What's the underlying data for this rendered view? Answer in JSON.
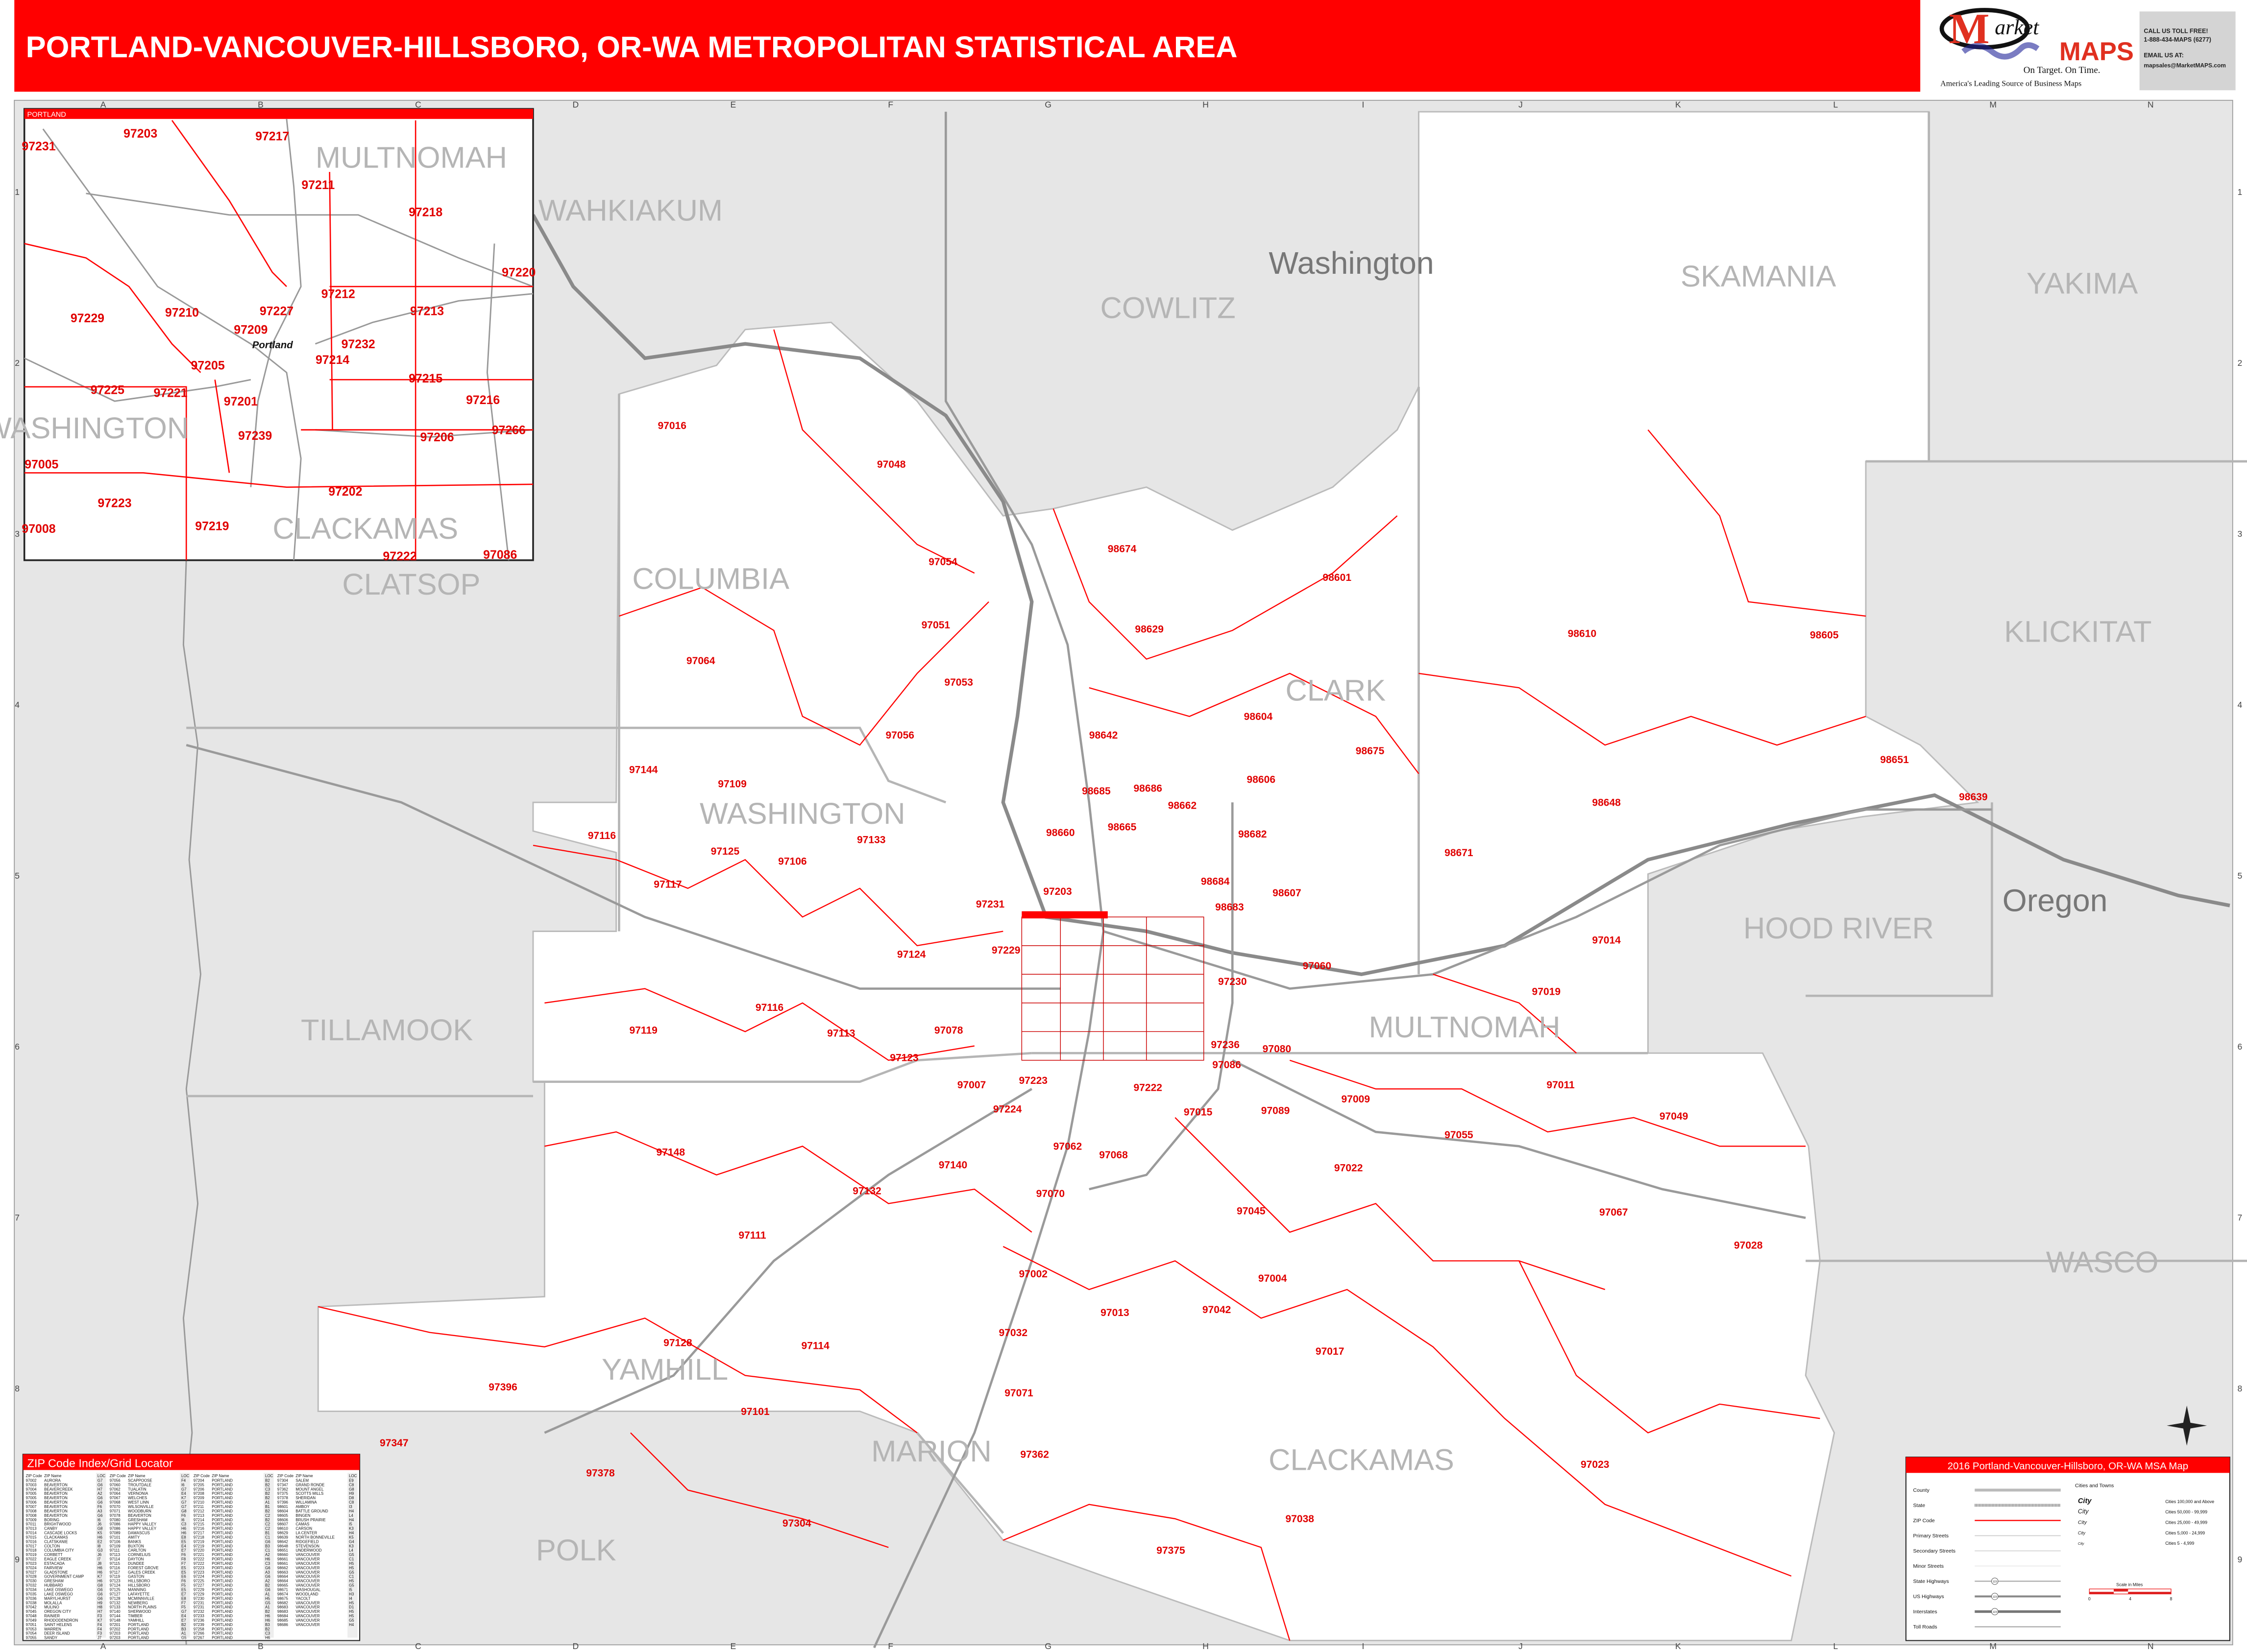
{
  "header": {
    "title": "PORTLAND-VANCOUVER-HILLSBORO, OR-WA METROPOLITAN STATISTICAL AREA",
    "accent_color": "#ff0000"
  },
  "logo": {
    "brand_text": "Market MAPS",
    "tagline": "On Target.  On Time.",
    "slogan": "America's Leading Source of Business Maps",
    "call_label": "CALL US TOLL FREE!",
    "phone": "1-888-434-MAPS (6277)",
    "email_label": "EMAIL US AT:",
    "email": "mapsales@MarketMAPS.com"
  },
  "grid": {
    "columns": [
      "A",
      "B",
      "C",
      "D",
      "E",
      "F",
      "G",
      "H",
      "I",
      "J",
      "K",
      "L",
      "M",
      "N"
    ],
    "rows": [
      "1",
      "2",
      "3",
      "4",
      "5",
      "6",
      "7",
      "8",
      "9"
    ]
  },
  "map": {
    "states": [
      "Washington",
      "Oregon"
    ],
    "counties": [
      "WAHKIAKUM",
      "COWLITZ",
      "SKAMANIA",
      "YAKIMA",
      "CLATSOP",
      "COLUMBIA",
      "CLARK",
      "KLICKITAT",
      "WASHINGTON",
      "TILLAMOOK",
      "MULTNOMAH",
      "HOOD RIVER",
      "WASCO",
      "YAMHILL",
      "MARION",
      "CLACKAMAS",
      "POLK"
    ],
    "zip_labels": [
      "97016",
      "97048",
      "97054",
      "98674",
      "98601",
      "97051",
      "98629",
      "98610",
      "98605",
      "97064",
      "97053",
      "98604",
      "98642",
      "98675",
      "97056",
      "97144",
      "97109",
      "98606",
      "98651",
      "98648",
      "98685",
      "98686",
      "98662",
      "98660",
      "98665",
      "98682",
      "97116",
      "97133",
      "97125",
      "97106",
      "98671",
      "97117",
      "97203",
      "98607",
      "97231",
      "98684",
      "98683",
      "97014",
      "97124",
      "97229",
      "97060",
      "97019",
      "97119",
      "97116",
      "97113",
      "97078",
      "97123",
      "97080",
      "97230",
      "97011",
      "97049",
      "97007",
      "97223",
      "97222",
      "97224",
      "97015",
      "97089",
      "97009",
      "97055",
      "97148",
      "97062",
      "97068",
      "97140",
      "97022",
      "97132",
      "97070",
      "97045",
      "97067",
      "97111",
      "97028",
      "97002",
      "97004",
      "97013",
      "97042",
      "97032",
      "97128",
      "97114",
      "97017",
      "97396",
      "97071",
      "97101",
      "97347",
      "97023",
      "97362",
      "97378",
      "97038",
      "97304",
      "97375",
      "98639",
      "97236",
      "97086"
    ]
  },
  "inset": {
    "title": "PORTLAND",
    "counties": [
      "MULTNOMAH",
      "WASHINGTON",
      "CLACKAMAS"
    ],
    "zip_labels": [
      "97231",
      "97203",
      "97217",
      "97211",
      "97218",
      "97220",
      "97212",
      "97210",
      "97229",
      "97227",
      "97213",
      "97209",
      "97232",
      "97214",
      "97205",
      "97215",
      "97225",
      "97221",
      "97201",
      "97216",
      "97266",
      "97206",
      "97239",
      "97005",
      "97223",
      "97202",
      "97219",
      "97008",
      "97222",
      "97086"
    ],
    "city_label": "Portland"
  },
  "zip_index": {
    "title": "ZIP Code Index/Grid Locator",
    "headers": [
      "ZIP Code",
      "ZIP Name",
      "LOC"
    ],
    "columns": [
      [
        [
          "97002",
          "AURORA",
          "G7"
        ],
        [
          "97003",
          "BEAVERTON",
          "G6"
        ],
        [
          "97004",
          "BEAVERCREEK",
          "H7"
        ],
        [
          "97005",
          "BEAVERTON",
          "A2"
        ],
        [
          "97005",
          "BEAVERTON",
          "G6"
        ],
        [
          "97006",
          "BEAVERTON",
          "G6"
        ],
        [
          "97007",
          "BEAVERTON",
          "F6"
        ],
        [
          "97008",
          "BEAVERTON",
          "A3"
        ],
        [
          "97008",
          "BEAVERTON",
          "G6"
        ],
        [
          "97009",
          "BORING",
          "I6"
        ],
        [
          "97011",
          "BRIGHTWOOD",
          "J6"
        ],
        [
          "97013",
          "CANBY",
          "G8"
        ],
        [
          "97014",
          "CASCADE LOCKS",
          "K5"
        ],
        [
          "97015",
          "CLACKAMAS",
          "H6"
        ],
        [
          "97016",
          "CLATSKANIE",
          "E2"
        ],
        [
          "97017",
          "COLTON",
          "I8"
        ],
        [
          "97018",
          "COLUMBIA CITY",
          "G3"
        ],
        [
          "97019",
          "CORBETT",
          "J6"
        ],
        [
          "97022",
          "EAGLE CREEK",
          "I7"
        ],
        [
          "97023",
          "ESTACADA",
          "J8"
        ],
        [
          "97024",
          "FAIRVIEW",
          "H6"
        ],
        [
          "97027",
          "GLADSTONE",
          "H6"
        ],
        [
          "97028",
          "GOVERNMENT CAMP",
          "K7"
        ],
        [
          "97030",
          "GRESHAM",
          "H6"
        ],
        [
          "97032",
          "HUBBARD",
          "G8"
        ],
        [
          "97034",
          "LAKE OSWEGO",
          "G6"
        ],
        [
          "97035",
          "LAKE OSWEGO",
          "G6"
        ],
        [
          "97036",
          "MARYLHURST",
          "G6"
        ],
        [
          "97038",
          "MOLALLA",
          "H9"
        ],
        [
          "97042",
          "MULINO",
          "H8"
        ],
        [
          "97045",
          "OREGON CITY",
          "H7"
        ],
        [
          "97048",
          "RAINIER",
          "F3"
        ],
        [
          "97049",
          "RHODODENDRON",
          "K7"
        ],
        [
          "97051",
          "SAINT HELENS",
          "F4"
        ],
        [
          "97053",
          "WARREN",
          "F4"
        ],
        [
          "97054",
          "DEER ISLAND",
          "F3"
        ],
        [
          "97055",
          "SANDY",
          "J7"
        ]
      ],
      [
        [
          "97056",
          "SCAPPOOSE",
          "F4"
        ],
        [
          "97060",
          "TROUTDALE",
          "I6"
        ],
        [
          "97062",
          "TUALATIN",
          "G7"
        ],
        [
          "97064",
          "VERNONIA",
          "E4"
        ],
        [
          "97067",
          "WELCHES",
          "K7"
        ],
        [
          "97068",
          "WEST LINN",
          "G7"
        ],
        [
          "97070",
          "WILSONVILLE",
          "G7"
        ],
        [
          "97071",
          "WOODBURN",
          "G8"
        ],
        [
          "97078",
          "BEAVERTON",
          "F6"
        ],
        [
          "97080",
          "GRESHAM",
          "I6"
        ],
        [
          "97086",
          "HAPPY VALLEY",
          "C3"
        ],
        [
          "97086",
          "HAPPY VALLEY",
          "H6"
        ],
        [
          "97089",
          "DAMASCUS",
          "H6"
        ],
        [
          "97101",
          "AMITY",
          "E8"
        ],
        [
          "97106",
          "BANKS",
          "E5"
        ],
        [
          "97109",
          "BUXTON",
          "E4"
        ],
        [
          "97111",
          "CARLTON",
          "E7"
        ],
        [
          "97113",
          "CORNELIUS",
          "F6"
        ],
        [
          "97114",
          "DAYTON",
          "F8"
        ],
        [
          "97115",
          "DUNDEE",
          "F7"
        ],
        [
          "97116",
          "FOREST GROVE",
          "E5"
        ],
        [
          "97117",
          "GALES CREEK",
          "E5"
        ],
        [
          "97119",
          "GASTON",
          "E6"
        ],
        [
          "97123",
          "HILLSBORO",
          "F6"
        ],
        [
          "97124",
          "HILLSBORO",
          "F5"
        ],
        [
          "97125",
          "MANNING",
          "E5"
        ],
        [
          "97127",
          "LAFAYETTE",
          "E7"
        ],
        [
          "97128",
          "MCMINNVILLE",
          "E8"
        ],
        [
          "97132",
          "NEWBERG",
          "F7"
        ],
        [
          "97133",
          "NORTH PLAINS",
          "F5"
        ],
        [
          "97140",
          "SHERWOOD",
          "G7"
        ],
        [
          "97144",
          "TIMBER",
          "E4"
        ],
        [
          "97148",
          "YAMHILL",
          "E7"
        ],
        [
          "97201",
          "PORTLAND",
          "B2"
        ],
        [
          "97202",
          "PORTLAND",
          "B3"
        ],
        [
          "97203",
          "PORTLAND",
          "A1"
        ],
        [
          "97203",
          "PORTLAND",
          "G5"
        ]
      ],
      [
        [
          "97204",
          "PORTLAND",
          "B2"
        ],
        [
          "97205",
          "PORTLAND",
          "B2"
        ],
        [
          "97206",
          "PORTLAND",
          "C3"
        ],
        [
          "97208",
          "PORTLAND",
          "B2"
        ],
        [
          "97209",
          "PORTLAND",
          "B2"
        ],
        [
          "97210",
          "PORTLAND",
          "A1"
        ],
        [
          "97211",
          "PORTLAND",
          "B1"
        ],
        [
          "97212",
          "PORTLAND",
          "B2"
        ],
        [
          "97213",
          "PORTLAND",
          "C2"
        ],
        [
          "97214",
          "PORTLAND",
          "B2"
        ],
        [
          "97215",
          "PORTLAND",
          "C2"
        ],
        [
          "97216",
          "PORTLAND",
          "C2"
        ],
        [
          "97217",
          "PORTLAND",
          "B1"
        ],
        [
          "97218",
          "PORTLAND",
          "C1"
        ],
        [
          "97219",
          "PORTLAND",
          "G6"
        ],
        [
          "97219",
          "PORTLAND",
          "B3"
        ],
        [
          "97220",
          "PORTLAND",
          "C1"
        ],
        [
          "97221",
          "PORTLAND",
          "A2"
        ],
        [
          "97222",
          "PORTLAND",
          "H6"
        ],
        [
          "97222",
          "PORTLAND",
          "C3"
        ],
        [
          "97223",
          "PORTLAND",
          "G6"
        ],
        [
          "97223",
          "PORTLAND",
          "A3"
        ],
        [
          "97224",
          "PORTLAND",
          "G6"
        ],
        [
          "97225",
          "PORTLAND",
          "A2"
        ],
        [
          "97227",
          "PORTLAND",
          "B2"
        ],
        [
          "97229",
          "PORTLAND",
          "G6"
        ],
        [
          "97229",
          "PORTLAND",
          "A1"
        ],
        [
          "97230",
          "PORTLAND",
          "H5"
        ],
        [
          "97231",
          "PORTLAND",
          "G5"
        ],
        [
          "97231",
          "PORTLAND",
          "A1"
        ],
        [
          "97232",
          "PORTLAND",
          "B2"
        ],
        [
          "97233",
          "PORTLAND",
          "H6"
        ],
        [
          "97236",
          "PORTLAND",
          "H6"
        ],
        [
          "97239",
          "PORTLAND",
          "B3"
        ],
        [
          "97258",
          "PORTLAND",
          "B2"
        ],
        [
          "97266",
          "PORTLAND",
          "C3"
        ],
        [
          "97267",
          "PORTLAND",
          "H6"
        ]
      ],
      [
        [
          "97304",
          "SALEM",
          "E9"
        ],
        [
          "97347",
          "GRAND RONDE",
          "C8"
        ],
        [
          "97362",
          "MOUNT ANGEL",
          "G8"
        ],
        [
          "97375",
          "SCOTTS MILLS",
          "H9"
        ],
        [
          "97378",
          "SHERIDAN",
          "D8"
        ],
        [
          "97396",
          "WILLAMINA",
          "C8"
        ],
        [
          "98601",
          "AMBOY",
          "I3"
        ],
        [
          "98604",
          "BATTLE GROUND",
          "H4"
        ],
        [
          "98605",
          "BINGEN",
          "L4"
        ],
        [
          "98606",
          "BRUSH PRAIRIE",
          "H4"
        ],
        [
          "98607",
          "CAMAS",
          "I5"
        ],
        [
          "98610",
          "CARSON",
          "K3"
        ],
        [
          "98629",
          "LA CENTER",
          "H4"
        ],
        [
          "98639",
          "NORTH BONNEVILLE",
          "K5"
        ],
        [
          "98642",
          "RIDGEFIELD",
          "G4"
        ],
        [
          "98648",
          "STEVENSON",
          "K3"
        ],
        [
          "98651",
          "UNDERWOOD",
          "L4"
        ],
        [
          "98660",
          "VANCOUVER",
          "G5"
        ],
        [
          "98661",
          "VANCOUVER",
          "C1"
        ],
        [
          "98661",
          "VANCOUVER",
          "H5"
        ],
        [
          "98662",
          "VANCOUVER",
          "H5"
        ],
        [
          "98663",
          "VANCOUVER",
          "G5"
        ],
        [
          "98664",
          "VANCOUVER",
          "C1"
        ],
        [
          "98664",
          "VANCOUVER",
          "H5"
        ],
        [
          "98665",
          "VANCOUVER",
          "G5"
        ],
        [
          "98671",
          "WASHOUGAL",
          "I5"
        ],
        [
          "98674",
          "WOODLAND",
          "H3"
        ],
        [
          "98675",
          "YACOLT",
          "I4"
        ],
        [
          "98682",
          "VANCOUVER",
          "H5"
        ],
        [
          "98683",
          "VANCOUVER",
          "D1"
        ],
        [
          "98683",
          "VANCOUVER",
          "H5"
        ],
        [
          "98684",
          "VANCOUVER",
          "H5"
        ],
        [
          "98685",
          "VANCOUVER",
          "G5"
        ],
        [
          "98686",
          "VANCOUVER",
          "H4"
        ]
      ]
    ]
  },
  "legend": {
    "title": "2016 Portland-Vancouver-Hillsboro, OR-WA MSA Map",
    "line_items": [
      "County",
      "State",
      "ZIP Code",
      "Primary Streets",
      "Secondary Streets",
      "Minor Streets",
      "State Highways",
      "US Highways",
      "Interstates",
      "Toll Roads"
    ],
    "cities_title": "Cities and Towns",
    "city_sample": "City",
    "city_classes": [
      "Cities 100,000 and Above",
      "Cities 50,000 - 99,999",
      "Cities 25,000 - 49,999",
      "Cities 5,000 - 24,999",
      "Cities 5 - 4,999"
    ],
    "highway_shield": "123",
    "scale_title": "Scale in Miles",
    "scale_ticks": [
      "0",
      "4",
      "8"
    ],
    "zip_color": "#ff0000"
  }
}
